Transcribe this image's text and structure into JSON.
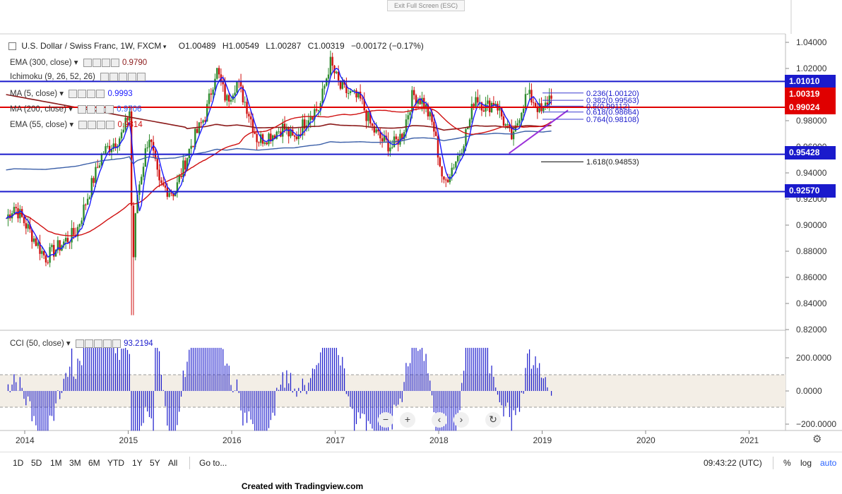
{
  "toolbar": {
    "exit_fullscreen": "Exit Full Screen (ESC)"
  },
  "header": {
    "symbol": "U.S. Dollar / Swiss Franc, 1W, FXCM",
    "ohlc_open": "O1.00489",
    "ohlc_high": "H1.00549",
    "ohlc_low": "L1.00287",
    "ohlc_close": "C1.00319",
    "ohlc_change": "−0.00172 (−0.17%)"
  },
  "indicators": [
    {
      "label": "EMA (300, close)",
      "value": "0.9790",
      "color": "#8b1a1a"
    },
    {
      "label": "Ichimoku (9, 26, 52, 26)",
      "value": "",
      "color": "#2962ff"
    },
    {
      "label": "MA (5, close)",
      "value": "0.9993",
      "color": "#1a1aff"
    },
    {
      "label": "MA (200, close)",
      "value": "0.9706",
      "color": "#2962ff"
    },
    {
      "label": "EMA (55, close)",
      "value": "0.9814",
      "color": "#d01010"
    }
  ],
  "price_tags": [
    {
      "label": "1.01010",
      "color": "#1a1acc"
    },
    {
      "label": "1.00319",
      "color": "#e00000"
    },
    {
      "label": "0.99024",
      "color": "#e00000"
    },
    {
      "label": "0.95428",
      "color": "#1a1acc"
    },
    {
      "label": "0.92570",
      "color": "#1a1acc"
    }
  ],
  "cci": {
    "label": "CCI (50, close)",
    "value": "93.2194"
  },
  "range_buttons": [
    "1D",
    "5D",
    "1M",
    "3M",
    "6M",
    "YTD",
    "1Y",
    "5Y",
    "All"
  ],
  "goto": "Go to...",
  "clock": "09:43:22 (UTC)",
  "scale_options": {
    "percent": "%",
    "log": "log",
    "auto": "auto"
  },
  "credit": "Created with Tradingview.com",
  "colors": {
    "up": "#2e8b2e",
    "down": "#d01010",
    "hline": "#1a1acc",
    "trend": "#9b30d9",
    "cci": "#1a1acc"
  },
  "chart_data": {
    "type": "candlestick",
    "title": "U.S. Dollar / Swiss Franc, 1W, FXCM",
    "ylim": [
      0.82,
      1.045
    ],
    "y_ticks": [
      "1.04000",
      "1.02000",
      "1.00000",
      "0.98000",
      "0.96000",
      "0.94000",
      "0.92000",
      "0.90000",
      "0.88000",
      "0.86000",
      "0.84000",
      "0.82000"
    ],
    "x_ticks": [
      "2014",
      "2015",
      "2016",
      "2017",
      "2018",
      "2019",
      "2020",
      "2021"
    ],
    "x_tick_years": [
      2014,
      2015,
      2016,
      2017,
      2018,
      2019,
      2020,
      2021
    ],
    "horizontal_levels": [
      {
        "value": 1.0101,
        "color": "#1a1acc"
      },
      {
        "value": 0.99024,
        "color": "#e00000"
      },
      {
        "value": 0.95428,
        "color": "#1a1acc"
      },
      {
        "value": 0.9257,
        "color": "#1a1acc"
      }
    ],
    "fibonacci": [
      {
        "label": "0.236(1.00120)",
        "value": 1.0012
      },
      {
        "label": "0.382(0.99563)",
        "value": 0.99563
      },
      {
        "label": "0.5(0.99112)",
        "value": 0.99112
      },
      {
        "label": "0.618(0.98664)",
        "value": 0.98664
      },
      {
        "label": "0.764(0.98108)",
        "value": 0.98108
      },
      {
        "label": "1.618(0.94853)",
        "value": 0.94853
      }
    ],
    "trendline": {
      "from": [
        2018.68,
        0.955
      ],
      "to": [
        2019.25,
        0.988
      ]
    },
    "close_keyframes": [
      [
        2013.82,
        0.905
      ],
      [
        2013.9,
        0.915
      ],
      [
        2014.05,
        0.895
      ],
      [
        2014.2,
        0.875
      ],
      [
        2014.35,
        0.885
      ],
      [
        2014.5,
        0.895
      ],
      [
        2014.6,
        0.92
      ],
      [
        2014.75,
        0.955
      ],
      [
        2014.95,
        0.97
      ],
      [
        2015.02,
        0.99
      ],
      [
        2015.04,
        0.86
      ],
      [
        2015.08,
        0.92
      ],
      [
        2015.2,
        0.97
      ],
      [
        2015.3,
        0.93
      ],
      [
        2015.45,
        0.925
      ],
      [
        2015.6,
        0.96
      ],
      [
        2015.75,
        0.985
      ],
      [
        2015.85,
        1.02
      ],
      [
        2015.95,
        0.995
      ],
      [
        2016.05,
        1.01
      ],
      [
        2016.15,
        0.99
      ],
      [
        2016.25,
        0.965
      ],
      [
        2016.4,
        0.97
      ],
      [
        2016.5,
        0.975
      ],
      [
        2016.6,
        0.965
      ],
      [
        2016.75,
        0.985
      ],
      [
        2016.85,
        0.99
      ],
      [
        2016.95,
        1.025
      ],
      [
        2017.05,
        1.005
      ],
      [
        2017.15,
        1.0
      ],
      [
        2017.25,
        0.995
      ],
      [
        2017.35,
        0.975
      ],
      [
        2017.45,
        0.965
      ],
      [
        2017.55,
        0.96
      ],
      [
        2017.65,
        0.97
      ],
      [
        2017.75,
        1.0
      ],
      [
        2017.85,
        0.995
      ],
      [
        2017.95,
        0.975
      ],
      [
        2018.05,
        0.93
      ],
      [
        2018.1,
        0.94
      ],
      [
        2018.2,
        0.955
      ],
      [
        2018.3,
        0.98
      ],
      [
        2018.35,
        1.0
      ],
      [
        2018.45,
        0.99
      ],
      [
        2018.55,
        0.995
      ],
      [
        2018.65,
        0.975
      ],
      [
        2018.72,
        0.965
      ],
      [
        2018.78,
        0.985
      ],
      [
        2018.85,
        1.0
      ],
      [
        2018.92,
        0.995
      ],
      [
        2019.0,
        0.985
      ],
      [
        2019.05,
        0.995
      ],
      [
        2019.1,
        1.003
      ]
    ],
    "cci_range": [
      -200,
      200
    ],
    "cci_ticks": [
      "200.0000",
      "0.0000",
      "−200.0000"
    ],
    "cci_bands": [
      100,
      -100
    ]
  }
}
